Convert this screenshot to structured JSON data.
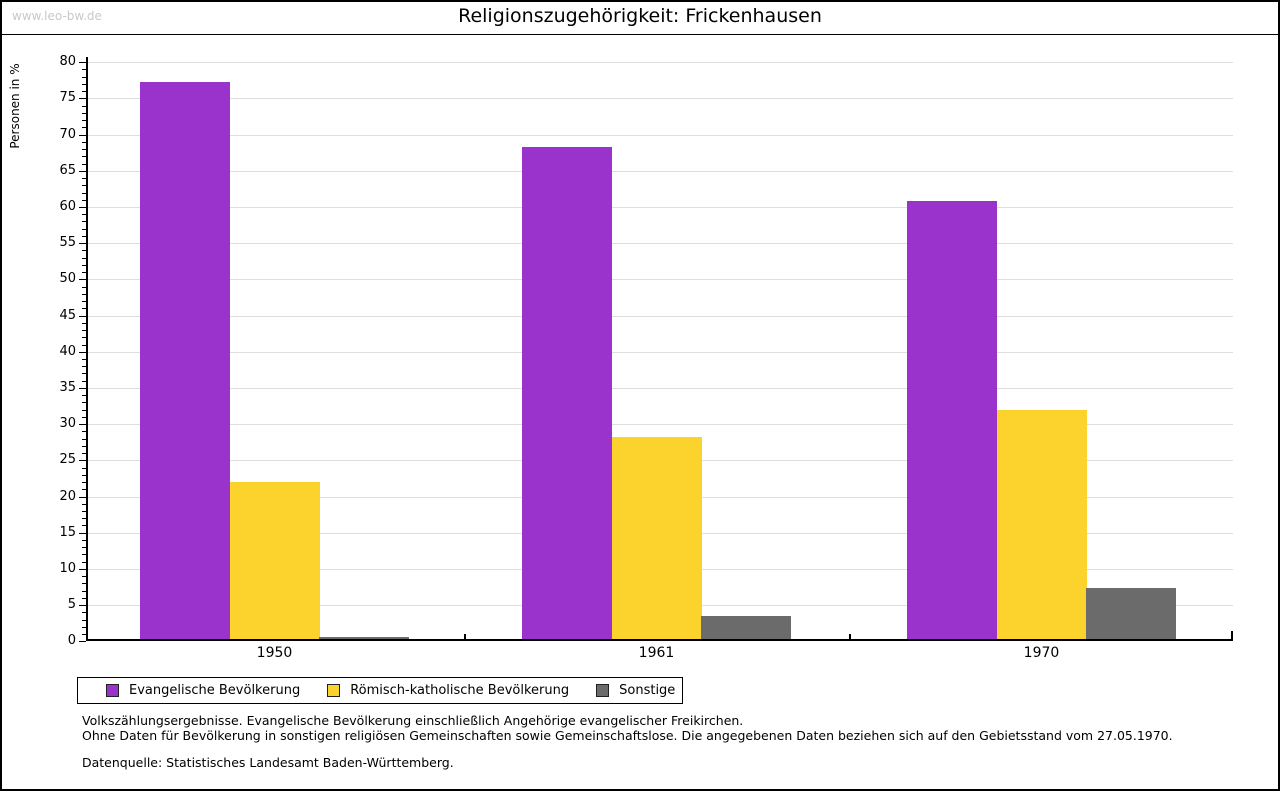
{
  "window": {
    "watermark": "www.leo-bw.de"
  },
  "chart_data": {
    "type": "bar",
    "title": "Religionszugehörigkeit: Frickenhausen",
    "ylabel": "Personen in %",
    "xlabel": "",
    "ylim": [
      0,
      80
    ],
    "ytick_step": 5,
    "grid": true,
    "legend_position": "bottom-left",
    "categories": [
      "1950",
      "1961",
      "1970"
    ],
    "series": [
      {
        "name": "Evangelische Bevölkerung",
        "key": "evangelische",
        "color": "#9933CC",
        "values": [
          77.3,
          68.3,
          60.8
        ]
      },
      {
        "name": "Römisch-katholische Bevölkerung",
        "key": "katholische",
        "color": "#FCD32C",
        "values": [
          22.0,
          28.2,
          31.9
        ]
      },
      {
        "name": "Sonstige",
        "key": "sonstige",
        "color": "#6B6B6B",
        "values": [
          0.6,
          3.5,
          7.3
        ]
      }
    ]
  },
  "footnotes": {
    "line1": "Volkszählungsergebnisse. Evangelische Bevölkerung einschließlich Angehörige evangelischer Freikirchen.",
    "line2": "Ohne Daten für Bevölkerung in sonstigen religiösen Gemeinschaften sowie Gemeinschaftslose. Die angegebenen Daten beziehen sich auf den Gebietsstand vom 27.05.1970.",
    "source": "Datenquelle: Statistisches Landesamt Baden-Württemberg."
  },
  "colors": {
    "gridline": "#dedede",
    "axis": "#000000",
    "watermark": "#c9c9c9"
  }
}
